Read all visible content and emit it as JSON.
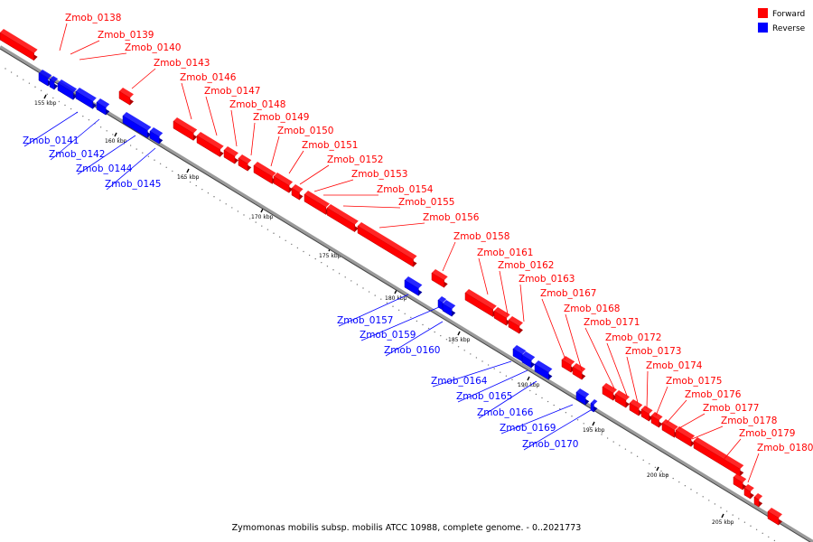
{
  "legend": {
    "forward": {
      "label": "Forward",
      "color": "#ff0000"
    },
    "reverse": {
      "label": "Reverse",
      "color": "#0000ff"
    }
  },
  "footer": "Zymomonas mobilis subsp. mobilis ATCC 10988, complete genome. - 0..2021773",
  "genome_range": "0..2021773",
  "ruler_ticks": [
    {
      "kbp": 155,
      "label": "155 kbp"
    },
    {
      "kbp": 160,
      "label": "160 kbp"
    },
    {
      "kbp": 165,
      "label": "165 kbp"
    },
    {
      "kbp": 170,
      "label": "170 kbp"
    },
    {
      "kbp": 175,
      "label": "175 kbp"
    },
    {
      "kbp": 180,
      "label": "180 kbp"
    },
    {
      "kbp": 185,
      "label": "185 kbp"
    },
    {
      "kbp": 190,
      "label": "190 kbp"
    },
    {
      "kbp": 195,
      "label": "195 kbp"
    },
    {
      "kbp": 200,
      "label": "200 kbp"
    },
    {
      "kbp": 205,
      "label": "205 kbp"
    }
  ],
  "genes": [
    {
      "id": "Zmob_0138",
      "strand": "forward"
    },
    {
      "id": "Zmob_0139",
      "strand": "forward"
    },
    {
      "id": "Zmob_0140",
      "strand": "forward"
    },
    {
      "id": "Zmob_0141",
      "strand": "reverse"
    },
    {
      "id": "Zmob_0142",
      "strand": "reverse"
    },
    {
      "id": "Zmob_0143",
      "strand": "forward"
    },
    {
      "id": "Zmob_0144",
      "strand": "reverse"
    },
    {
      "id": "Zmob_0145",
      "strand": "reverse"
    },
    {
      "id": "Zmob_0146",
      "strand": "forward"
    },
    {
      "id": "Zmob_0147",
      "strand": "forward"
    },
    {
      "id": "Zmob_0148",
      "strand": "forward"
    },
    {
      "id": "Zmob_0149",
      "strand": "forward"
    },
    {
      "id": "Zmob_0150",
      "strand": "forward"
    },
    {
      "id": "Zmob_0151",
      "strand": "forward"
    },
    {
      "id": "Zmob_0152",
      "strand": "forward"
    },
    {
      "id": "Zmob_0153",
      "strand": "forward"
    },
    {
      "id": "Zmob_0154",
      "strand": "forward"
    },
    {
      "id": "Zmob_0155",
      "strand": "forward"
    },
    {
      "id": "Zmob_0156",
      "strand": "forward"
    },
    {
      "id": "Zmob_0157",
      "strand": "reverse"
    },
    {
      "id": "Zmob_0158",
      "strand": "forward"
    },
    {
      "id": "Zmob_0159",
      "strand": "reverse"
    },
    {
      "id": "Zmob_0160",
      "strand": "reverse"
    },
    {
      "id": "Zmob_0161",
      "strand": "forward"
    },
    {
      "id": "Zmob_0162",
      "strand": "forward"
    },
    {
      "id": "Zmob_0163",
      "strand": "forward"
    },
    {
      "id": "Zmob_0164",
      "strand": "reverse"
    },
    {
      "id": "Zmob_0165",
      "strand": "reverse"
    },
    {
      "id": "Zmob_0166",
      "strand": "reverse"
    },
    {
      "id": "Zmob_0167",
      "strand": "forward"
    },
    {
      "id": "Zmob_0168",
      "strand": "forward"
    },
    {
      "id": "Zmob_0169",
      "strand": "reverse"
    },
    {
      "id": "Zmob_0170",
      "strand": "reverse"
    },
    {
      "id": "Zmob_0171",
      "strand": "forward"
    },
    {
      "id": "Zmob_0172",
      "strand": "forward"
    },
    {
      "id": "Zmob_0173",
      "strand": "forward"
    },
    {
      "id": "Zmob_0174",
      "strand": "forward"
    },
    {
      "id": "Zmob_0175",
      "strand": "forward"
    },
    {
      "id": "Zmob_0176",
      "strand": "forward"
    },
    {
      "id": "Zmob_0177",
      "strand": "forward"
    },
    {
      "id": "Zmob_0178",
      "strand": "forward"
    },
    {
      "id": "Zmob_0179",
      "strand": "forward"
    },
    {
      "id": "Zmob_0180",
      "strand": "forward"
    }
  ]
}
